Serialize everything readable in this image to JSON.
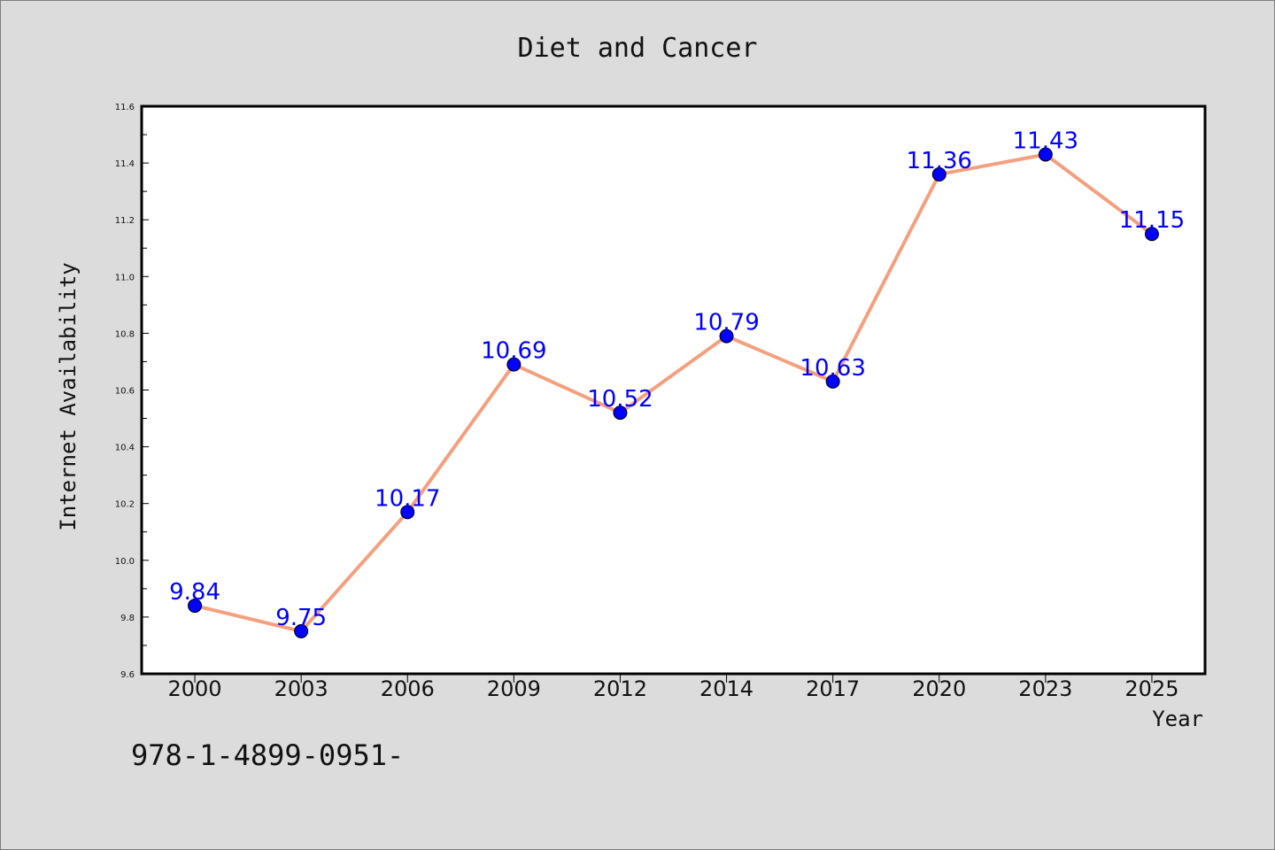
{
  "chart_data": {
    "type": "line",
    "title": "Diet and Cancer",
    "xlabel": "Year",
    "ylabel": "Internet Availability",
    "categories": [
      "2000",
      "2003",
      "2006",
      "2009",
      "2012",
      "2014",
      "2017",
      "2020",
      "2023",
      "2025"
    ],
    "values": [
      9.84,
      9.75,
      10.17,
      10.69,
      10.52,
      10.79,
      10.63,
      11.36,
      11.43,
      11.15
    ],
    "data_labels": [
      "9.84",
      "9.75",
      "10.17",
      "10.69",
      "10.52",
      "10.79",
      "10.63",
      "11.36",
      "11.43",
      "11.15"
    ],
    "ylim": [
      9.6,
      11.6
    ],
    "yticks": [
      "9.6",
      "9.8",
      "10.0",
      "10.2",
      "10.4",
      "10.6",
      "10.8",
      "11.0",
      "11.2",
      "11.4",
      "11.6"
    ],
    "line_color": "#f4a07e",
    "marker_color": "#0000ff",
    "label_color": "#0000ff",
    "grid": false,
    "legend": "none"
  },
  "footnote": "978-1-4899-0951-"
}
